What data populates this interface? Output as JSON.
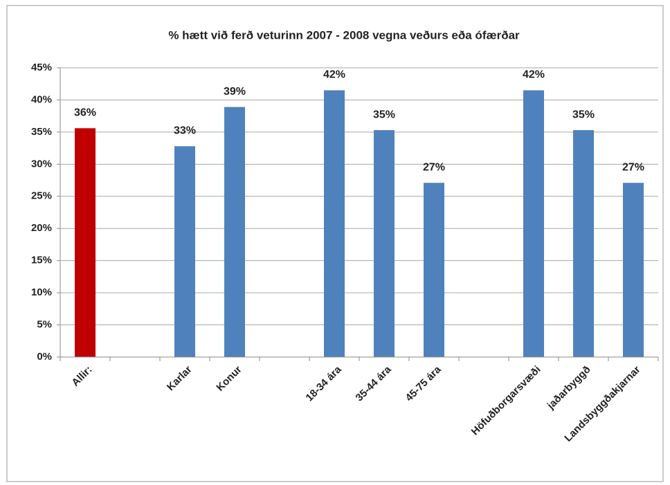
{
  "chart_data": {
    "type": "bar",
    "title": "% hætt við ferð veturinn 2007 - 2008 vegna veðurs eða ófærðar",
    "categories": [
      "Allir:",
      null,
      "Karlar",
      "Konur",
      null,
      "18-34 ára",
      "35-44 ára",
      "45-75 ára",
      null,
      "Höfuðborgarsvæði",
      "jaðarbyggð",
      "Landsbyggðakjarnar"
    ],
    "values": [
      35.6,
      null,
      32.8,
      38.9,
      null,
      41.5,
      35.3,
      27.1,
      null,
      41.5,
      35.3,
      27.1
    ],
    "value_labels": [
      "36%",
      null,
      "33%",
      "39%",
      null,
      "42%",
      "35%",
      "27%",
      null,
      "42%",
      "35%",
      "27%"
    ],
    "colors": [
      "#c00000",
      null,
      "#4f81bd",
      "#4f81bd",
      null,
      "#4f81bd",
      "#4f81bd",
      "#4f81bd",
      null,
      "#4f81bd",
      "#4f81bd",
      "#4f81bd"
    ],
    "ylim": [
      0,
      45
    ],
    "yticks": [
      {
        "value": 0,
        "label": "0%"
      },
      {
        "value": 5,
        "label": "5%"
      },
      {
        "value": 10,
        "label": "10%"
      },
      {
        "value": 15,
        "label": "15%"
      },
      {
        "value": 20,
        "label": "20%"
      },
      {
        "value": 25,
        "label": "25%"
      },
      {
        "value": 30,
        "label": "30%"
      },
      {
        "value": 35,
        "label": "35%"
      },
      {
        "value": 40,
        "label": "40%"
      },
      {
        "value": 45,
        "label": "45%"
      }
    ],
    "grid": true
  }
}
